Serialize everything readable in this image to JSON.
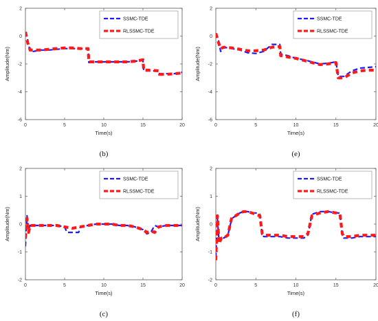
{
  "colors": {
    "ssmc": "#1a1aff",
    "rls": "#ff1a1a",
    "axis": "#555555",
    "grid": "#cccccc"
  },
  "chart_data": [
    {
      "id": "b",
      "type": "line",
      "caption": "(b)",
      "xlabel": "Time(s)",
      "ylabel": "Amplitude(Nm)",
      "xlim": [
        0,
        20
      ],
      "ylim": [
        -6,
        2
      ],
      "xticks": [
        0,
        5,
        10,
        15,
        20
      ],
      "yticks": [
        2,
        0,
        -2,
        -4,
        -6
      ],
      "legend": "top-right",
      "series": [
        {
          "name": "SSMC-TDE",
          "x": [
            0,
            0.3,
            0.6,
            1,
            2,
            3,
            4,
            5,
            6,
            7,
            8,
            8.1,
            9,
            10,
            11,
            12,
            13,
            14,
            15,
            15.1,
            16,
            17,
            17.1,
            18,
            19,
            20
          ],
          "y": [
            0.3,
            -0.3,
            -1.1,
            -1.1,
            -1.0,
            -1.0,
            -0.95,
            -0.9,
            -0.9,
            -0.9,
            -0.9,
            -1.9,
            -1.85,
            -1.85,
            -1.85,
            -1.85,
            -1.85,
            -1.8,
            -1.75,
            -2.5,
            -2.5,
            -2.5,
            -2.7,
            -2.7,
            -2.7,
            -2.6
          ]
        },
        {
          "name": "RLSSMC-TDE",
          "x": [
            0,
            0.3,
            0.6,
            1,
            2,
            3,
            4,
            5,
            6,
            7,
            8,
            8.1,
            9,
            10,
            11,
            12,
            13,
            14,
            15,
            15.1,
            16,
            17,
            17.1,
            18,
            19,
            20
          ],
          "y": [
            0.3,
            -0.5,
            -1.0,
            -1.0,
            -1.0,
            -0.95,
            -0.9,
            -0.85,
            -0.85,
            -0.9,
            -0.9,
            -1.85,
            -1.85,
            -1.85,
            -1.85,
            -1.85,
            -1.85,
            -1.8,
            -1.7,
            -2.45,
            -2.45,
            -2.5,
            -2.75,
            -2.75,
            -2.7,
            -2.65
          ]
        }
      ]
    },
    {
      "id": "e",
      "type": "line",
      "caption": "(e)",
      "xlabel": "Time(s)",
      "ylabel": "Amplitude(Nm)",
      "xlim": [
        0,
        20
      ],
      "ylim": [
        -6,
        2
      ],
      "xticks": [
        0,
        5,
        10,
        15,
        20
      ],
      "yticks": [
        2,
        0,
        -2,
        -4,
        -6
      ],
      "legend": "top-right",
      "series": [
        {
          "name": "SSMC-TDE",
          "x": [
            0,
            0.3,
            0.6,
            1,
            2,
            3,
            4,
            5,
            6,
            7,
            8,
            8.1,
            9,
            10,
            11,
            12,
            13,
            14,
            15,
            15.3,
            16,
            17,
            18,
            19,
            20
          ],
          "y": [
            0.2,
            -0.2,
            -1.1,
            -0.8,
            -0.9,
            -1.0,
            -1.2,
            -1.25,
            -1.1,
            -0.6,
            -0.6,
            -1.3,
            -1.4,
            -1.6,
            -1.7,
            -1.85,
            -2.0,
            -1.95,
            -1.85,
            -2.9,
            -2.9,
            -2.5,
            -2.3,
            -2.25,
            -2.2
          ]
        },
        {
          "name": "RLSSMC-TDE",
          "x": [
            0,
            0.3,
            0.6,
            1,
            2,
            3,
            4,
            5,
            6,
            7,
            8,
            8.1,
            9,
            10,
            11,
            12,
            13,
            14,
            15,
            15.3,
            16,
            17,
            18,
            19,
            20
          ],
          "y": [
            0.2,
            -0.4,
            -0.9,
            -0.8,
            -0.85,
            -0.95,
            -1.05,
            -1.05,
            -1.0,
            -0.8,
            -0.75,
            -1.4,
            -1.5,
            -1.6,
            -1.75,
            -1.9,
            -2.05,
            -2.0,
            -1.9,
            -3.0,
            -3.0,
            -2.65,
            -2.5,
            -2.45,
            -2.45
          ]
        }
      ]
    },
    {
      "id": "c",
      "type": "line",
      "caption": "(c)",
      "xlabel": "Time(s)",
      "ylabel": "Amplitude(Nm)",
      "xlim": [
        0,
        20
      ],
      "ylim": [
        -2,
        2
      ],
      "xticks": [
        0,
        5,
        10,
        15,
        20
      ],
      "yticks": [
        2,
        1,
        0,
        -1,
        -2
      ],
      "legend": "top-right",
      "series": [
        {
          "name": "SSMC-TDE",
          "x": [
            0,
            0.2,
            0.4,
            0.6,
            1,
            2,
            3,
            4,
            5,
            5.3,
            6,
            6.8,
            7,
            8,
            9,
            10,
            11,
            12,
            13,
            14,
            15,
            15.5,
            16,
            16.5,
            17,
            18,
            19,
            20
          ],
          "y": [
            -0.8,
            0.3,
            -0.2,
            -0.05,
            -0.05,
            -0.05,
            -0.05,
            -0.05,
            -0.1,
            -0.3,
            -0.3,
            -0.3,
            -0.1,
            -0.05,
            0.0,
            0.0,
            0.0,
            -0.05,
            -0.05,
            -0.1,
            -0.2,
            -0.35,
            -0.3,
            -0.05,
            -0.1,
            -0.05,
            -0.05,
            -0.05
          ]
        },
        {
          "name": "RLSSMC-TDE",
          "x": [
            0,
            0.2,
            0.4,
            0.6,
            1,
            2,
            3,
            4,
            5,
            6,
            7,
            8,
            9,
            10,
            11,
            12,
            13,
            14,
            15,
            15.5,
            16,
            16.5,
            17,
            18,
            19,
            20
          ],
          "y": [
            -0.5,
            0.2,
            -0.3,
            -0.05,
            -0.05,
            -0.05,
            -0.05,
            -0.05,
            -0.1,
            -0.15,
            -0.1,
            -0.05,
            0.0,
            0.0,
            0.0,
            -0.05,
            -0.05,
            -0.1,
            -0.2,
            -0.3,
            -0.25,
            -0.3,
            -0.1,
            -0.05,
            -0.05,
            -0.05
          ]
        }
      ]
    },
    {
      "id": "f",
      "type": "line",
      "caption": "(f)",
      "xlabel": "Time(s)",
      "ylabel": "Amplitude(Nm)",
      "xlim": [
        0,
        20
      ],
      "ylim": [
        -2,
        2
      ],
      "xticks": [
        0,
        5,
        10,
        15,
        20
      ],
      "yticks": [
        2,
        1,
        0,
        -1,
        -2
      ],
      "legend": "top-right",
      "series": [
        {
          "name": "SSMC-TDE",
          "x": [
            0,
            0.2,
            0.4,
            0.7,
            1,
            1.5,
            2,
            2.5,
            3,
            3.5,
            4,
            4.5,
            5,
            5.5,
            5.8,
            6,
            7,
            8,
            9,
            10,
            11,
            11.5,
            12,
            12.5,
            13,
            14,
            15,
            15.5,
            15.8,
            16,
            17,
            18,
            19,
            20
          ],
          "y": [
            -1.2,
            0.2,
            -0.6,
            -0.45,
            -0.5,
            -0.4,
            0.2,
            0.3,
            0.4,
            0.45,
            0.45,
            0.4,
            0.4,
            0.35,
            -0.4,
            -0.45,
            -0.45,
            -0.45,
            -0.5,
            -0.5,
            -0.5,
            -0.4,
            0.35,
            0.4,
            0.45,
            0.45,
            0.4,
            0.4,
            -0.4,
            -0.5,
            -0.5,
            -0.45,
            -0.45,
            -0.45
          ]
        },
        {
          "name": "RLSSMC-TDE",
          "x": [
            0,
            0.2,
            0.4,
            0.7,
            1,
            1.5,
            2,
            2.5,
            3,
            3.5,
            4,
            4.5,
            5,
            5.5,
            5.8,
            6,
            7,
            8,
            9,
            10,
            11,
            11.5,
            12,
            12.5,
            13,
            14,
            15,
            15.5,
            15.8,
            16,
            17,
            18,
            19,
            20
          ],
          "y": [
            -1.3,
            0.3,
            -0.7,
            -0.5,
            -0.5,
            -0.4,
            0.25,
            0.3,
            0.4,
            0.45,
            0.45,
            0.4,
            0.35,
            0.3,
            -0.35,
            -0.4,
            -0.4,
            -0.4,
            -0.45,
            -0.45,
            -0.45,
            -0.35,
            0.3,
            0.35,
            0.4,
            0.45,
            0.4,
            0.35,
            -0.35,
            -0.45,
            -0.45,
            -0.4,
            -0.4,
            -0.4
          ]
        }
      ]
    }
  ]
}
